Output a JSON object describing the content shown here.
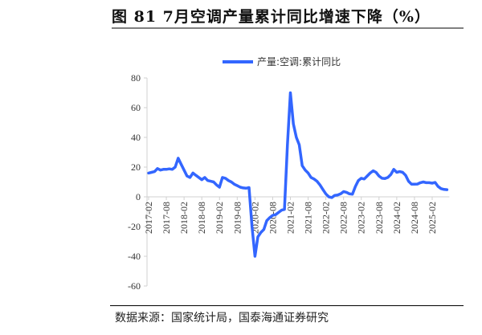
{
  "title": "图 81 7月空调产量累计同比增速下降（%）",
  "source": "数据来源：国家统计局，国泰海通证券研究",
  "chart_data": {
    "type": "line",
    "title": "图 81 7月空调产量累计同比增速下降（%）",
    "xlabel": "",
    "ylabel": "",
    "ylim": [
      -60,
      80
    ],
    "yticks": [
      -60,
      -40,
      -20,
      0,
      20,
      40,
      60,
      80
    ],
    "xtick_labels": [
      "2017-02",
      "2017-08",
      "2018-02",
      "2018-08",
      "2019-02",
      "2019-08",
      "2020-02",
      "2020-08",
      "2021-02",
      "2021-08",
      "2022-02",
      "2022-08",
      "2023-02",
      "2023-08",
      "2024-02",
      "2024-08",
      "2025-02"
    ],
    "x_start": "2017-02",
    "x_end": "2025-07",
    "grid": false,
    "legend_position": "top",
    "color": "#3366FF",
    "series": [
      {
        "name": "产量:空调:累计同比",
        "values": [
          16,
          16.5,
          17,
          19,
          18,
          18.5,
          18.5,
          18.8,
          18.5,
          20,
          26,
          22,
          18,
          14,
          13,
          16,
          14.5,
          13,
          11.5,
          13,
          11,
          10.5,
          10,
          8,
          6.5,
          13,
          12.5,
          11,
          10,
          8.5,
          7.5,
          6.5,
          6,
          5.8,
          6.2,
          -20,
          -40,
          -27,
          -24,
          -22,
          -16,
          -14,
          -12.5,
          -12,
          -10.5,
          -9,
          -8.5,
          35,
          70,
          49,
          40,
          35,
          21,
          18,
          16,
          13,
          12,
          10.5,
          8,
          5,
          2,
          0,
          -0.5,
          1,
          1.2,
          2,
          3.5,
          3,
          2,
          1.8,
          7,
          11,
          12.5,
          12,
          14,
          16,
          17.5,
          16.5,
          14,
          12.5,
          12.3,
          13,
          15,
          18.5,
          16.5,
          17,
          16.5,
          14.5,
          10.5,
          8.5,
          8.5,
          8.6,
          9.5,
          10,
          9.5,
          9.5,
          9.2,
          9.7,
          7,
          5.5,
          5,
          4.8
        ]
      }
    ]
  }
}
